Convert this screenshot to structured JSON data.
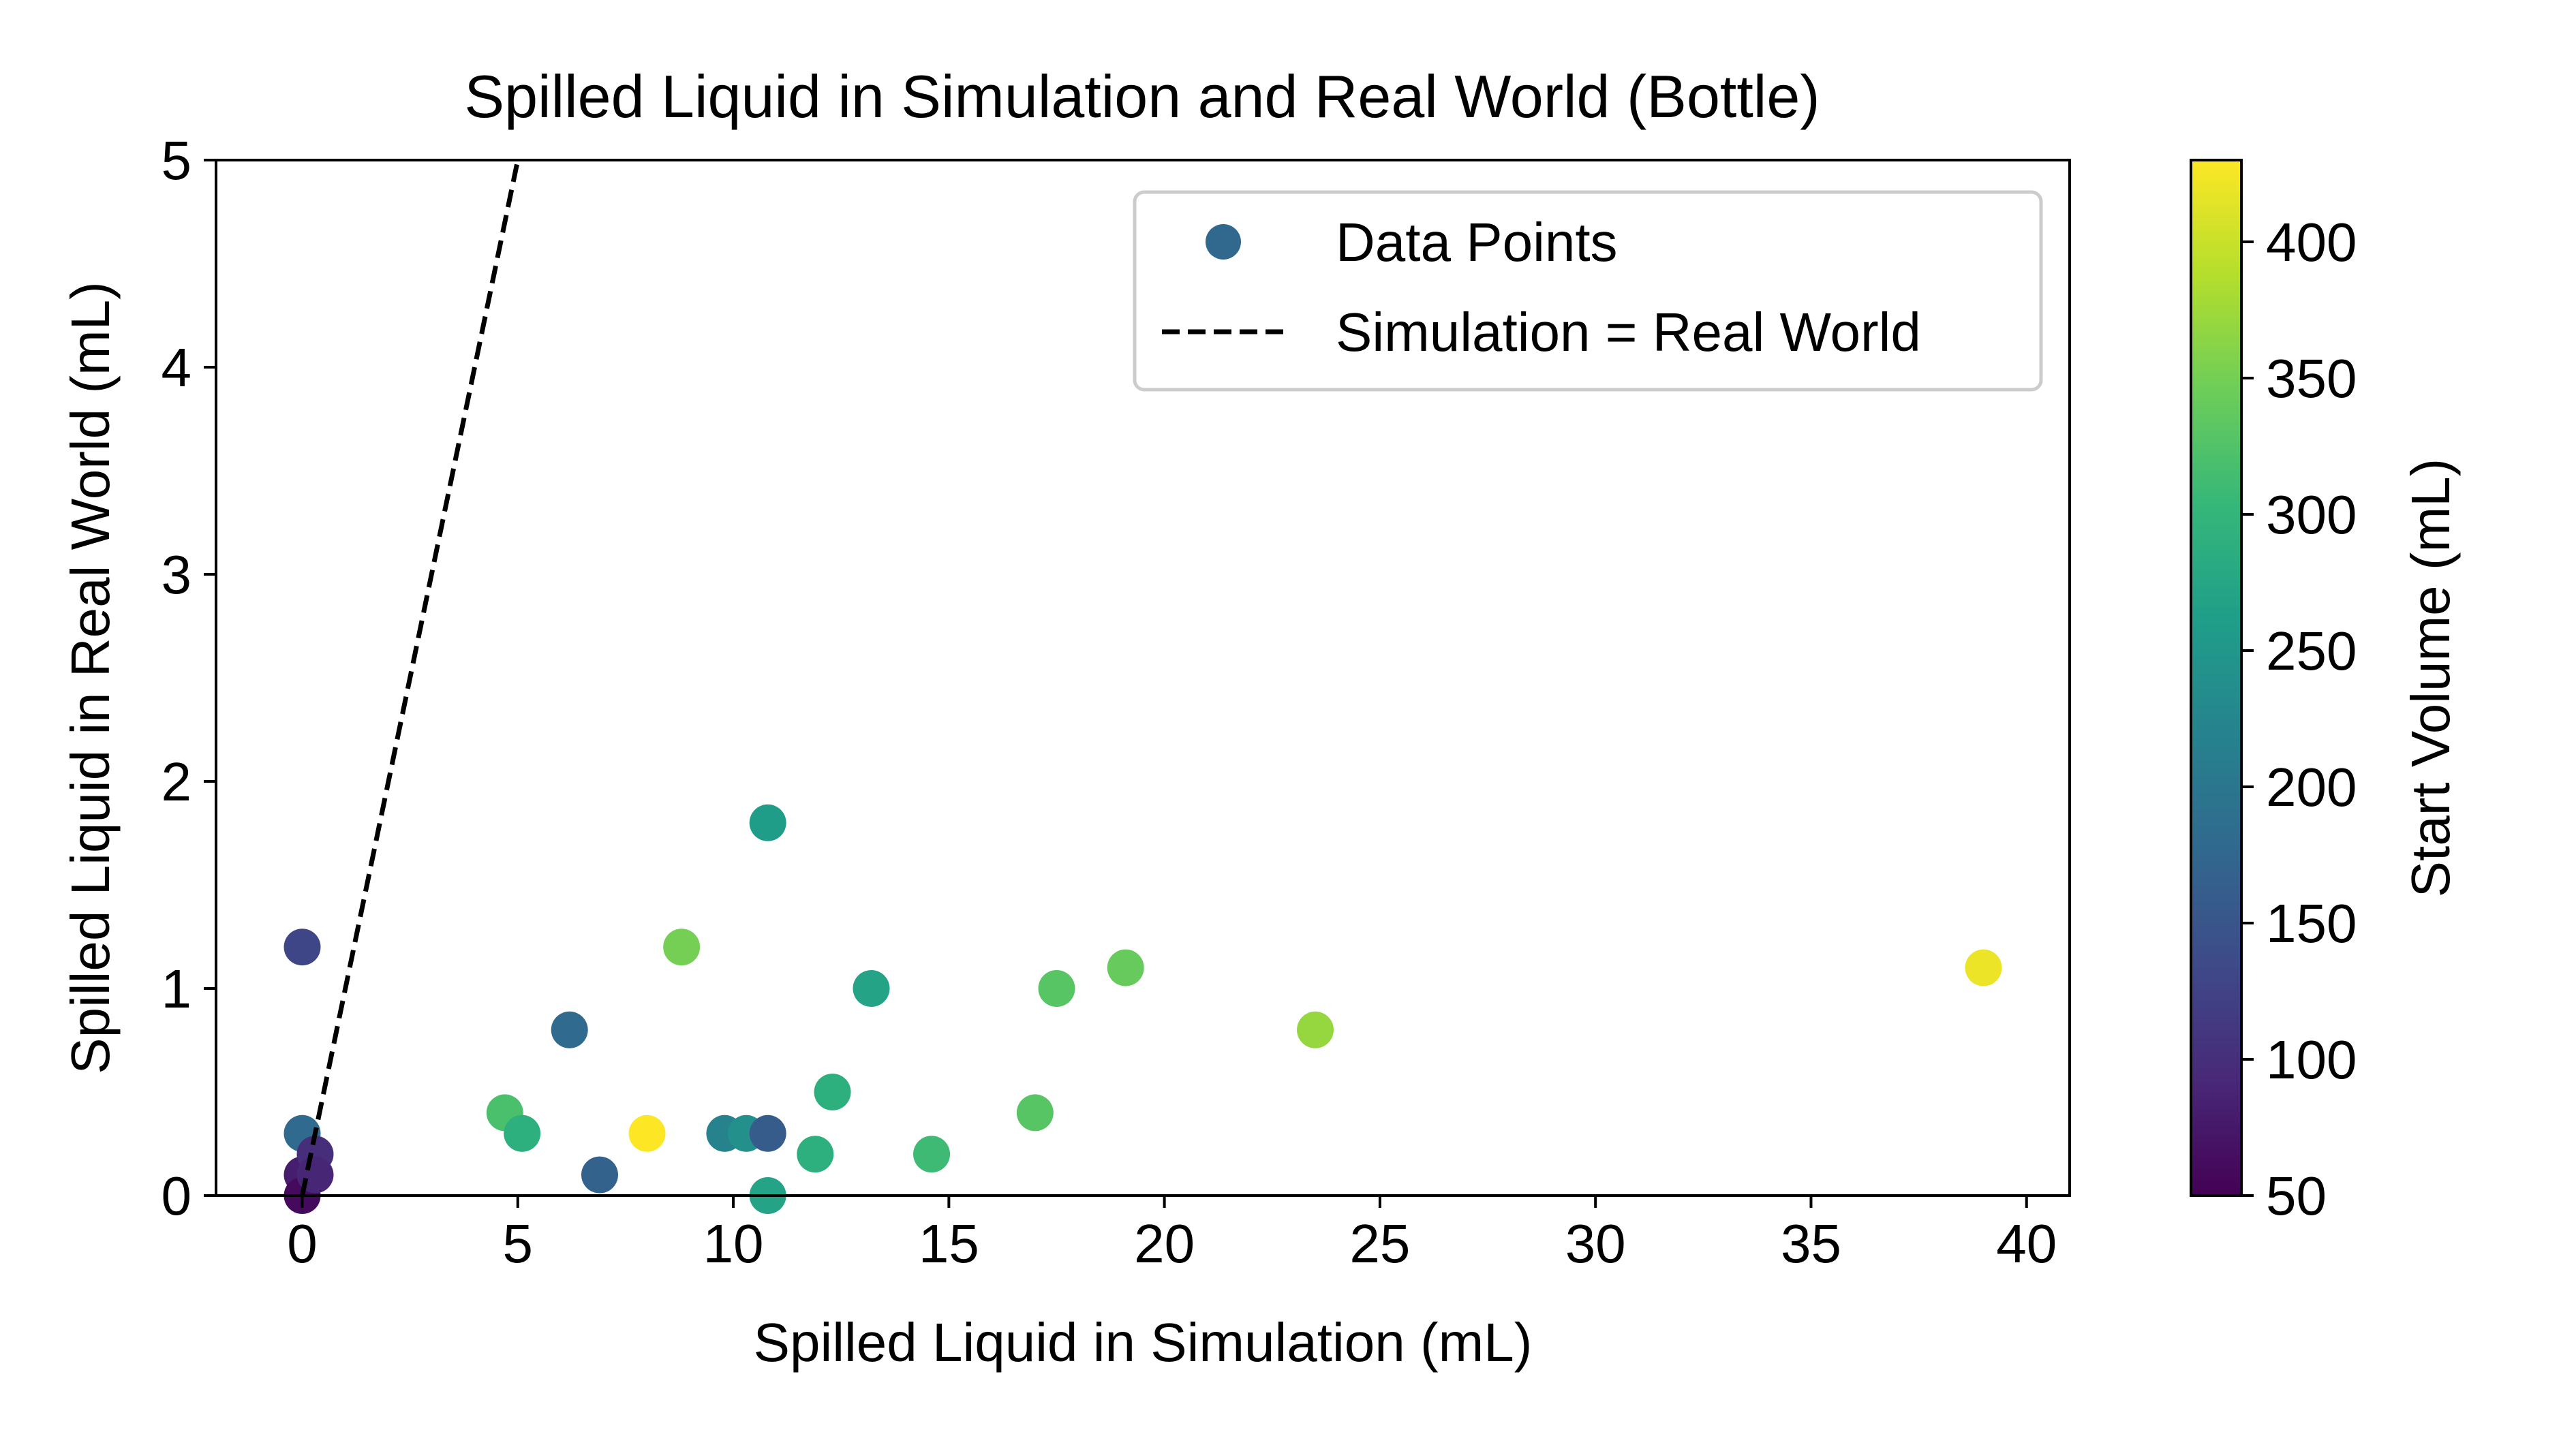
{
  "chart_data": {
    "type": "scatter",
    "title": "Spilled Liquid in Simulation and Real World (Bottle)",
    "xlabel": "Spilled Liquid in Simulation (mL)",
    "ylabel": "Spilled Liquid in Real World (mL)",
    "xlim": [
      -2,
      41
    ],
    "ylim": [
      0,
      5
    ],
    "xticks": [
      0,
      5,
      10,
      15,
      20,
      25,
      30,
      35,
      40
    ],
    "yticks": [
      0,
      1,
      2,
      3,
      4,
      5
    ],
    "grid": false,
    "legend": {
      "position": "top-right",
      "entries": [
        {
          "label": "Data Points",
          "kind": "marker",
          "color": "#31688e"
        },
        {
          "label": "Simulation = Real World",
          "kind": "dashed-line",
          "color": "#000000"
        }
      ]
    },
    "reference_line": {
      "label": "Simulation = Real World",
      "x": [
        0,
        5
      ],
      "y": [
        0,
        5
      ],
      "style": "dashed",
      "color": "#000000"
    },
    "colorbar": {
      "label": "Start Volume (mL)",
      "colormap": "viridis",
      "range": [
        50,
        430
      ],
      "ticks": [
        50,
        100,
        150,
        200,
        250,
        300,
        350,
        400
      ]
    },
    "series": [
      {
        "points": [
          {
            "x": 0.0,
            "y": 1.2,
            "start_volume": 130
          },
          {
            "x": 0.0,
            "y": 0.3,
            "start_volume": 180
          },
          {
            "x": 0.0,
            "y": 0.1,
            "start_volume": 80
          },
          {
            "x": 0.0,
            "y": 0.0,
            "start_volume": 60
          },
          {
            "x": 0.3,
            "y": 0.2,
            "start_volume": 100
          },
          {
            "x": 0.3,
            "y": 0.1,
            "start_volume": 90
          },
          {
            "x": 4.7,
            "y": 0.4,
            "start_volume": 320
          },
          {
            "x": 5.1,
            "y": 0.3,
            "start_volume": 290
          },
          {
            "x": 6.2,
            "y": 0.8,
            "start_volume": 180
          },
          {
            "x": 6.9,
            "y": 0.1,
            "start_volume": 170
          },
          {
            "x": 8.0,
            "y": 0.3,
            "start_volume": 430
          },
          {
            "x": 8.8,
            "y": 1.2,
            "start_volume": 350
          },
          {
            "x": 9.8,
            "y": 0.3,
            "start_volume": 220
          },
          {
            "x": 10.3,
            "y": 0.3,
            "start_volume": 240
          },
          {
            "x": 10.8,
            "y": 0.3,
            "start_volume": 160
          },
          {
            "x": 10.8,
            "y": 1.8,
            "start_volume": 260
          },
          {
            "x": 10.8,
            "y": 0.0,
            "start_volume": 270
          },
          {
            "x": 11.9,
            "y": 0.2,
            "start_volume": 290
          },
          {
            "x": 12.3,
            "y": 0.5,
            "start_volume": 290
          },
          {
            "x": 13.2,
            "y": 1.0,
            "start_volume": 270
          },
          {
            "x": 14.6,
            "y": 0.2,
            "start_volume": 310
          },
          {
            "x": 17.0,
            "y": 0.4,
            "start_volume": 330
          },
          {
            "x": 17.5,
            "y": 1.0,
            "start_volume": 330
          },
          {
            "x": 19.1,
            "y": 1.1,
            "start_volume": 340
          },
          {
            "x": 23.5,
            "y": 0.8,
            "start_volume": 370
          },
          {
            "x": 39.0,
            "y": 1.1,
            "start_volume": 420
          }
        ]
      }
    ]
  }
}
